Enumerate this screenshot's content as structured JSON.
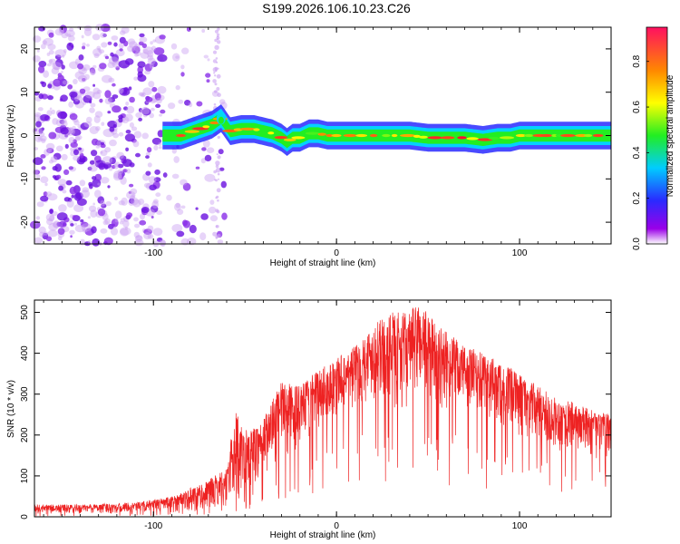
{
  "title": "S199.2026.106.10.23.C26",
  "colors": {
    "snr_line": "#ee2222",
    "cmap": [
      "#ffffff",
      "#8a00e6",
      "#2233ff",
      "#00e5ff",
      "#22ee22",
      "#ffff00",
      "#ff8800",
      "#ff1030"
    ]
  },
  "chart_data": [
    {
      "type": "heatmap",
      "title": "S199.2026.106.10.23.C26",
      "xlabel": "Height of straight line (km)",
      "ylabel": "Frequency (Hz)",
      "xlim": [
        -165,
        150
      ],
      "ylim": [
        -25,
        25
      ],
      "xticks": [
        -100,
        0,
        100
      ],
      "yticks": [
        -20,
        -10,
        0,
        10,
        20
      ],
      "colorbar": {
        "label": "Normalized spectral amplitude",
        "range": [
          0,
          0.95
        ],
        "ticks": [
          "0.0",
          "0.2",
          "0.4",
          "0.6",
          "0.8"
        ],
        "tick_values": [
          0,
          0.2,
          0.4,
          0.6,
          0.8
        ]
      },
      "ridge": {
        "description": "narrow high-amplitude frequency ridge",
        "x": [
          -95,
          -85,
          -75,
          -68,
          -63,
          -58,
          -52,
          -45,
          -40,
          -35,
          -30,
          -27,
          -24,
          -20,
          -15,
          -10,
          -5,
          0,
          10,
          20,
          30,
          40,
          50,
          60,
          70,
          80,
          88,
          95,
          100,
          110,
          120,
          130,
          140,
          150
        ],
        "freq": [
          0,
          0,
          1.5,
          2.5,
          4,
          1,
          1.5,
          1.5,
          1,
          0.5,
          -0.5,
          -1.5,
          -0.5,
          -0.5,
          0.5,
          0.5,
          0,
          0,
          0,
          0,
          0,
          0,
          -0.5,
          -0.5,
          -0.5,
          -1,
          -0.5,
          -0.5,
          0,
          0,
          0,
          0,
          0,
          0
        ],
        "peak_amplitude": 0.9
      },
      "noise_region": {
        "x_range": [
          -165,
          -60
        ],
        "freq_range": [
          -25,
          25
        ],
        "amplitude_range": [
          0.05,
          0.25
        ]
      }
    },
    {
      "type": "line",
      "xlabel": "Height of straight line (km)",
      "ylabel": "SNR (10 * v/v)",
      "xlim": [
        -165,
        150
      ],
      "ylim": [
        0,
        530
      ],
      "xticks": [
        -100,
        0,
        100
      ],
      "yticks": [
        0,
        100,
        200,
        300,
        400,
        500
      ],
      "series": [
        {
          "name": "SNR",
          "envelope_x": [
            -165,
            -140,
            -110,
            -90,
            -80,
            -70,
            -60,
            -55,
            -52,
            -48,
            -40,
            -30,
            -20,
            -10,
            0,
            10,
            20,
            30,
            40,
            45,
            55,
            70,
            85,
            100,
            110,
            120,
            130,
            140,
            150
          ],
          "envelope_max": [
            30,
            30,
            35,
            50,
            70,
            90,
            120,
            270,
            220,
            210,
            240,
            330,
            320,
            360,
            390,
            420,
            470,
            500,
            500,
            530,
            470,
            420,
            390,
            350,
            320,
            290,
            280,
            260,
            250
          ],
          "envelope_min": [
            5,
            5,
            8,
            8,
            10,
            12,
            15,
            20,
            40,
            60,
            100,
            140,
            160,
            200,
            240,
            260,
            280,
            250,
            260,
            280,
            250,
            250,
            220,
            190,
            170,
            160,
            150,
            140,
            140
          ]
        }
      ]
    }
  ]
}
